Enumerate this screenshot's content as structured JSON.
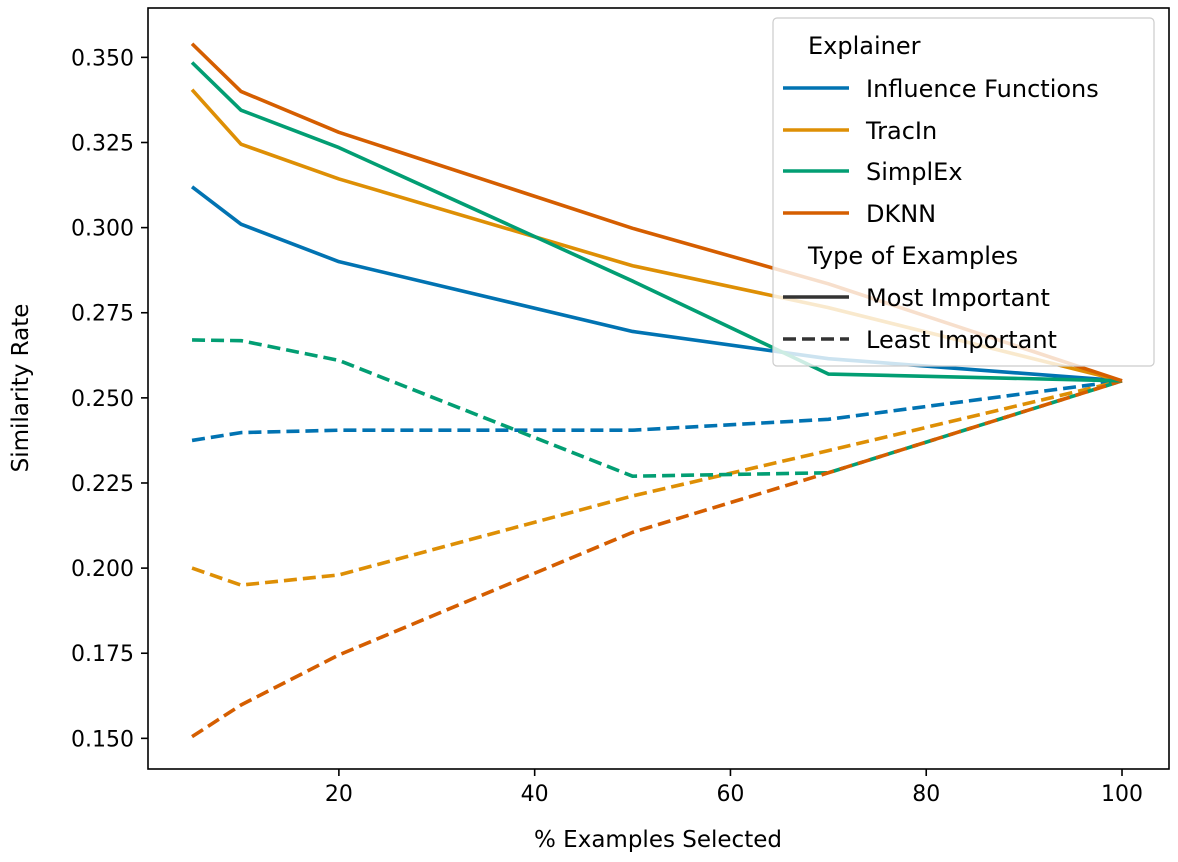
{
  "chart_data": {
    "type": "line",
    "xlabel": "% Examples Selected",
    "ylabel": "Similarity Rate",
    "xlim": [
      0.5,
      104.8
    ],
    "ylim": [
      0.141,
      0.3645
    ],
    "xticks": [
      20,
      40,
      60,
      80,
      100
    ],
    "xtick_labels": [
      "20",
      "40",
      "60",
      "80",
      "100"
    ],
    "yticks": [
      0.15,
      0.175,
      0.2,
      0.225,
      0.25,
      0.275,
      0.3,
      0.325,
      0.35
    ],
    "ytick_labels": [
      "0.150",
      "0.175",
      "0.200",
      "0.225",
      "0.250",
      "0.275",
      "0.300",
      "0.325",
      "0.350"
    ],
    "grid": false,
    "legend": {
      "placement": "top-right",
      "hue_title": "Explainer",
      "style_title": "Type of Examples",
      "style_entries": [
        {
          "label": "Most Important",
          "dash": "solid"
        },
        {
          "label": "Least Important",
          "dash": "dashed"
        }
      ]
    },
    "x": [
      5,
      10,
      20,
      50,
      70,
      100
    ],
    "series": [
      {
        "name": "Influence Functions",
        "color": "#0173b2",
        "type": "Most Important",
        "values": [
          0.312,
          0.301,
          0.29,
          0.2695,
          0.2615,
          0.255
        ]
      },
      {
        "name": "TracIn",
        "color": "#de8f05",
        "type": "Most Important",
        "values": [
          0.3405,
          0.3245,
          0.3143,
          0.2888,
          0.2765,
          0.255
        ]
      },
      {
        "name": "SimplEx",
        "color": "#029e73",
        "type": "Most Important",
        "values": [
          0.3485,
          0.3345,
          0.3235,
          0.2843,
          0.257,
          0.255
        ]
      },
      {
        "name": "DKNN",
        "color": "#d55e00",
        "type": "Most Important",
        "values": [
          0.354,
          0.34,
          0.328,
          0.2998,
          0.2835,
          0.255
        ]
      },
      {
        "name": "Influence Functions",
        "color": "#0173b2",
        "type": "Least Important",
        "values": [
          0.2375,
          0.2398,
          0.2405,
          0.2405,
          0.2437,
          0.255
        ]
      },
      {
        "name": "TracIn",
        "color": "#de8f05",
        "type": "Least Important",
        "values": [
          0.2,
          0.195,
          0.198,
          0.2212,
          0.2345,
          0.255
        ]
      },
      {
        "name": "SimplEx",
        "color": "#029e73",
        "type": "Least Important",
        "values": [
          0.267,
          0.2668,
          0.261,
          0.227,
          0.228,
          0.255
        ]
      },
      {
        "name": "DKNN",
        "color": "#d55e00",
        "type": "Least Important",
        "values": [
          0.1505,
          0.1598,
          0.1745,
          0.2105,
          0.228,
          0.255
        ]
      }
    ]
  }
}
